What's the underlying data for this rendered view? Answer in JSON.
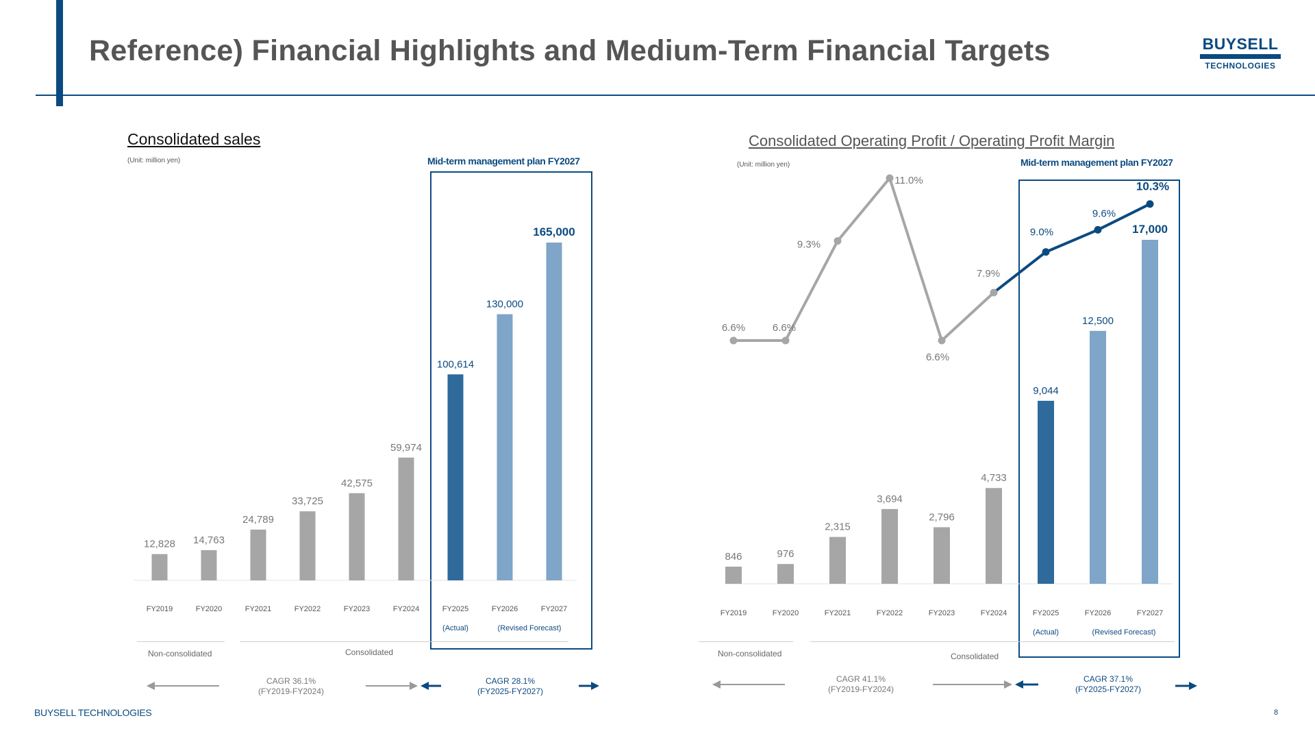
{
  "header": {
    "title": "Reference) Financial Highlights and Medium-Term Financial Targets",
    "logo_top": "BUYSELL",
    "logo_bottom": "TECHNOLOGIES"
  },
  "footer": {
    "company": "BUYSELL TECHNOLOGIES",
    "page_number": "8"
  },
  "colors": {
    "navy": "#0b4a80",
    "actual": "#2e6a9c",
    "forecast": "#7fa5c8",
    "grey": "#a6a6a6"
  },
  "left_panel": {
    "title": "Consolidated sales",
    "unit": "(Unit: million yen)",
    "plan_label": "Mid-term management plan FY2027",
    "actual_note": "(Actual)",
    "forecast_note": "(Revised Forecast)",
    "segment_nonconsolidated": "Non-consolidated",
    "segment_consolidated": "Consolidated",
    "cagr_past": {
      "rate": "CAGR 36.1%",
      "period": "(FY2019-FY2024)"
    },
    "cagr_plan": {
      "rate": "CAGR 28.1%",
      "period": "(FY2025-FY2027)"
    }
  },
  "right_panel": {
    "title": "Consolidated Operating Profit / Operating Profit Margin",
    "unit": "(Unit: million yen)",
    "plan_label": "Mid-term management plan FY2027",
    "actual_note": "(Actual)",
    "forecast_note": "(Revised Forecast)",
    "segment_nonconsolidated": "Non-consolidated",
    "segment_consolidated": "Consolidated",
    "cagr_past": {
      "rate": "CAGR 41.1%",
      "period": "(FY2019-FY2024)"
    },
    "cagr_plan": {
      "rate": "CAGR 37.1%",
      "period": "(FY2025-FY2027)"
    }
  },
  "chart_data": [
    {
      "type": "bar",
      "title": "Consolidated sales",
      "ylabel": "million yen",
      "categories": [
        "FY2019",
        "FY2020",
        "FY2021",
        "FY2022",
        "FY2023",
        "FY2024",
        "FY2025",
        "FY2026",
        "FY2027"
      ],
      "values": [
        12828,
        14763,
        24789,
        33725,
        42575,
        59974,
        100614,
        130000,
        165000
      ],
      "value_labels": [
        "12,828",
        "14,763",
        "24,789",
        "33,725",
        "42,575",
        "59,974",
        "100,614",
        "130,000",
        "165,000"
      ],
      "status": [
        "past",
        "past",
        "past",
        "past",
        "past",
        "past",
        "actual",
        "forecast",
        "forecast"
      ],
      "ylim": [
        0,
        165000
      ]
    },
    {
      "type": "bar",
      "title": "Consolidated Operating Profit",
      "ylabel": "million yen",
      "categories": [
        "FY2019",
        "FY2020",
        "FY2021",
        "FY2022",
        "FY2023",
        "FY2024",
        "FY2025",
        "FY2026",
        "FY2027"
      ],
      "values": [
        846,
        976,
        2315,
        3694,
        2796,
        4733,
        9044,
        12500,
        17000
      ],
      "value_labels": [
        "846",
        "976",
        "2,315",
        "3,694",
        "2,796",
        "4,733",
        "9,044",
        "12,500",
        "17,000"
      ],
      "status": [
        "past",
        "past",
        "past",
        "past",
        "past",
        "past",
        "actual",
        "forecast",
        "forecast"
      ],
      "ylim": [
        0,
        17000
      ]
    },
    {
      "type": "line",
      "title": "Operating Profit Margin",
      "ylabel": "%",
      "categories": [
        "FY2019",
        "FY2020",
        "FY2021",
        "FY2022",
        "FY2023",
        "FY2024",
        "FY2025",
        "FY2026",
        "FY2027"
      ],
      "values": [
        6.6,
        6.6,
        9.3,
        11.0,
        6.6,
        7.9,
        9.0,
        9.6,
        10.3
      ],
      "value_labels": [
        "6.6%",
        "6.6%",
        "9.3%",
        "11.0%",
        "6.6%",
        "7.9%",
        "9.0%",
        "9.6%",
        "10.3%"
      ],
      "status": [
        "past",
        "past",
        "past",
        "past",
        "past",
        "past",
        "actual",
        "forecast",
        "forecast"
      ],
      "ylim": [
        5.0,
        11.0
      ]
    }
  ]
}
